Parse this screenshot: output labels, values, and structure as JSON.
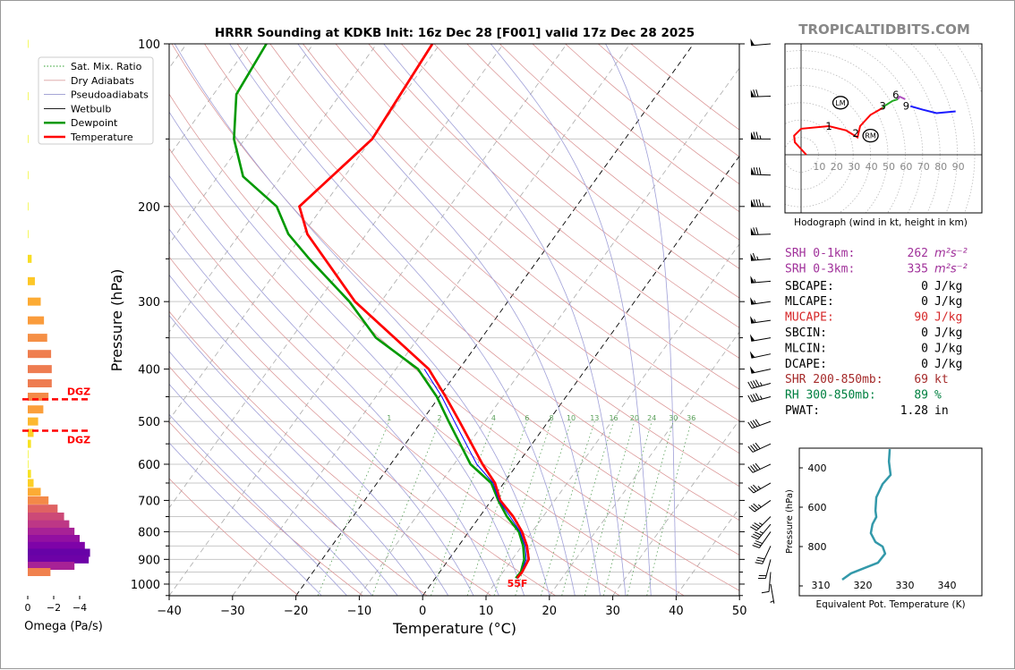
{
  "header": {
    "title": "HRRR Sounding at KDKB Init: 16z Dec 28 [F001] valid 17z Dec 28 2025",
    "watermark": "TROPICALTIDBITS.COM"
  },
  "legend": {
    "items": [
      {
        "label": "Sat. Mix. Ratio",
        "color": "#2ca02c",
        "style": "dotted"
      },
      {
        "label": "Dry Adiabats",
        "color": "#d9a0a0",
        "style": "solid"
      },
      {
        "label": "Pseudoadiabats",
        "color": "#9a9ad0",
        "style": "solid"
      },
      {
        "label": "Wetbulb",
        "color": "#000000",
        "style": "solid"
      },
      {
        "label": "Dewpoint",
        "color": "#009900",
        "style": "thick"
      },
      {
        "label": "Temperature",
        "color": "#ff0000",
        "style": "thick"
      }
    ]
  },
  "surface_label": "55F",
  "dgz_label": "DGZ",
  "params": [
    {
      "label": "SRH 0-1km:",
      "value": "262",
      "unit": "m²s⁻²",
      "color": "#a0309a"
    },
    {
      "label": "SRH 0-3km:",
      "value": "335",
      "unit": "m²s⁻²",
      "color": "#a0309a"
    },
    {
      "label": "SBCAPE:",
      "value": "0",
      "unit": "J/kg",
      "color": "#000000"
    },
    {
      "label": "MLCAPE:",
      "value": "0",
      "unit": "J/kg",
      "color": "#000000"
    },
    {
      "label": "MUCAPE:",
      "value": "90",
      "unit": "J/kg",
      "color": "#d62728"
    },
    {
      "label": "SBCIN:",
      "value": "0",
      "unit": "J/kg",
      "color": "#000000"
    },
    {
      "label": "MLCIN:",
      "value": "0",
      "unit": "J/kg",
      "color": "#000000"
    },
    {
      "label": "DCAPE:",
      "value": "0",
      "unit": "J/kg",
      "color": "#000000"
    },
    {
      "label": "SHR 200-850mb:",
      "value": "69",
      "unit": "kt",
      "color": "#a52a2a"
    },
    {
      "label": "RH 300-850mb:",
      "value": "89",
      "unit": "%",
      "color": "#008040"
    },
    {
      "label": "PWAT:",
      "value": "1.28",
      "unit": "in",
      "color": "#000000"
    }
  ],
  "chart_data": [
    {
      "type": "line",
      "name": "skew-t",
      "xlabel": "Temperature (°C)",
      "ylabel": "Pressure (hPa)",
      "xlim": [
        -40,
        50
      ],
      "ylim": [
        1050,
        100
      ],
      "x_ticks": [
        "−40",
        "−30",
        "−20",
        "−10",
        "0",
        "10",
        "20",
        "30",
        "40",
        "50"
      ],
      "x_tick_values": [
        -40,
        -30,
        -20,
        -10,
        0,
        10,
        20,
        30,
        40,
        50
      ],
      "y_ticks": [
        "100",
        "200",
        "300",
        "400",
        "500",
        "600",
        "700",
        "800",
        "900",
        "1000"
      ],
      "y_tick_values": [
        100,
        200,
        300,
        400,
        500,
        600,
        700,
        800,
        900,
        1000
      ],
      "mixing_ratio_labels": [
        "1",
        "2",
        "4",
        "6",
        "8",
        "10",
        "13",
        "16",
        "20",
        "24",
        "30",
        "36"
      ],
      "mixing_ratio_values": [
        1,
        2,
        4,
        6,
        8,
        10,
        13,
        16,
        20,
        24,
        30,
        36
      ],
      "series": [
        {
          "name": "Temperature",
          "color": "#ff0000",
          "p": [
            100,
            150,
            200,
            225,
            300,
            400,
            450,
            500,
            600,
            650,
            700,
            750,
            800,
            850,
            900,
            950,
            975
          ],
          "t": [
            -61.2,
            -59.9,
            -63.7,
            -59.3,
            -44.1,
            -24.8,
            -19.0,
            -14.0,
            -5.5,
            -1.4,
            1.4,
            5.3,
            8.4,
            10.8,
            12.6,
            13.0,
            12.9
          ]
        },
        {
          "name": "Dewpoint",
          "color": "#009900",
          "p": [
            100,
            124,
            150,
            176,
            200,
            225,
            250,
            300,
            350,
            400,
            450,
            500,
            600,
            650,
            700,
            750,
            800,
            850,
            900,
            950,
            975
          ],
          "t": [
            -87.4,
            -86.4,
            -81.7,
            -76.0,
            -67.3,
            -62.3,
            -56.2,
            -45.0,
            -36.7,
            -26.5,
            -20.4,
            -15.7,
            -7.4,
            -2.0,
            1.1,
            4.3,
            7.9,
            10.2,
            11.9,
            12.8,
            12.7
          ]
        },
        {
          "name": "Wetbulb",
          "color": "#0000ff",
          "p": [
            400,
            450,
            500,
            600,
            650,
            700,
            750,
            800,
            850,
            900,
            950,
            975
          ],
          "t": [
            -25.5,
            -19.6,
            -14.8,
            -6.4,
            -1.7,
            1.2,
            4.8,
            8.1,
            10.5,
            12.2,
            12.9,
            12.8
          ]
        }
      ],
      "winds": {
        "p": [
          100,
          125,
          150,
          175,
          200,
          225,
          250,
          275,
          300,
          325,
          350,
          375,
          400,
          425,
          450,
          500,
          550,
          600,
          650,
          700,
          750,
          775,
          800,
          850,
          900,
          950,
          1000
        ],
        "dir": [
          265,
          268,
          270,
          272,
          270,
          268,
          265,
          265,
          262,
          262,
          260,
          258,
          258,
          255,
          255,
          250,
          245,
          245,
          240,
          235,
          225,
          220,
          215,
          205,
          195,
          185,
          170
        ],
        "spd": [
          50,
          70,
          75,
          80,
          85,
          70,
          65,
          55,
          55,
          55,
          50,
          50,
          50,
          45,
          45,
          40,
          40,
          40,
          35,
          35,
          35,
          35,
          30,
          30,
          20,
          10,
          5
        ]
      }
    },
    {
      "type": "bar",
      "name": "omega",
      "xlabel": "Omega (Pa/s)",
      "x_ticks": [
        "0",
        "−2",
        "−4"
      ],
      "x_tick_values": [
        0,
        -2,
        -4
      ],
      "p": [
        100,
        125,
        150,
        175,
        200,
        225,
        250,
        275,
        300,
        325,
        350,
        375,
        400,
        425,
        450,
        475,
        500,
        525,
        550,
        575,
        600,
        625,
        650,
        675,
        700,
        725,
        750,
        775,
        800,
        825,
        850,
        875,
        900,
        925,
        950
      ],
      "omega": [
        -0.02,
        -0.03,
        -0.03,
        -0.03,
        -0.03,
        -0.05,
        -0.3,
        -0.55,
        -1.0,
        -1.25,
        -1.5,
        -1.8,
        -1.85,
        -1.85,
        -1.6,
        -1.2,
        -0.8,
        -0.45,
        -0.25,
        -0.05,
        -0.05,
        -0.25,
        -0.45,
        -1.0,
        -1.6,
        -2.3,
        -2.8,
        -3.2,
        -3.6,
        -4.0,
        -4.4,
        -4.8,
        -4.7,
        -3.6,
        -1.75
      ],
      "dgz_p": [
        455,
        520
      ]
    },
    {
      "type": "line",
      "name": "hodograph",
      "xlabel": "Hodograph (wind in kt, height in km)",
      "ring_labels": [
        "10",
        "20",
        "30",
        "40",
        "50",
        "60",
        "70",
        "80",
        "90"
      ],
      "ring_values": [
        10,
        20,
        30,
        40,
        50,
        60,
        70,
        80,
        90
      ],
      "segments": [
        {
          "color": "#ff0000",
          "u": [
            3,
            -3.6,
            -4,
            0,
            16,
            26,
            32.5,
            34,
            40,
            47
          ],
          "v": [
            0,
            7.2,
            11,
            15,
            16.5,
            14,
            10,
            16.5,
            23,
            27
          ]
        },
        {
          "color": "#22aa22",
          "u": [
            47,
            48.5,
            52.6,
            55.7
          ],
          "v": [
            27,
            28.4,
            31,
            32
          ]
        },
        {
          "color": "#b050c0",
          "u": [
            55.7,
            56.7,
            60
          ],
          "v": [
            32,
            33.5,
            32
          ]
        },
        {
          "color": "#1a1aff",
          "u": [
            63,
            70,
            78,
            89
          ],
          "v": [
            28,
            26,
            24,
            25
          ]
        }
      ],
      "height_labels": [
        {
          "text": "1",
          "u": 16,
          "v": 16.5
        },
        {
          "text": "2",
          "u": 31.5,
          "v": 12.5
        },
        {
          "text": "3",
          "u": 47,
          "v": 28
        },
        {
          "text": "6",
          "u": 54.5,
          "v": 34.5
        },
        {
          "text": "9",
          "u": 60.5,
          "v": 28
        }
      ],
      "storm_motion": [
        {
          "text": "LM",
          "u": 22.7,
          "v": 30
        },
        {
          "text": "RM",
          "u": 40,
          "v": 11
        }
      ]
    },
    {
      "type": "line",
      "name": "theta-e",
      "xlabel": "Equivalent Pot. Temperature (K)",
      "ylabel": "Pressure (hPa)",
      "x_ticks": [
        "310",
        "320",
        "330",
        "340"
      ],
      "x_tick_values": [
        310,
        320,
        330,
        340
      ],
      "y_ticks": [
        "400",
        "600",
        "800"
      ],
      "y_tick_values": [
        400,
        600,
        800
      ],
      "color": "#3399aa",
      "p": [
        305,
        368,
        436,
        482,
        550,
        618,
        650,
        686,
        732,
        777,
        800,
        836,
        882,
        936,
        968
      ],
      "theta": [
        326.4,
        326.2,
        326.6,
        324.7,
        323.2,
        323.0,
        323.2,
        322.3,
        321.9,
        323.0,
        324.7,
        325.3,
        323.6,
        317.2,
        315.1
      ]
    }
  ]
}
